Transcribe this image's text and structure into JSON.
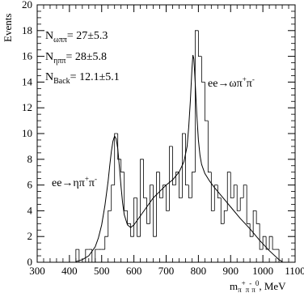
{
  "chart_data": {
    "type": "histogram_with_fit",
    "ylabel": "Events",
    "xlabel_parts": {
      "main": "m",
      "sub1": "π",
      "sup1": "+",
      "sub2": "π",
      "sup2": "-",
      "sub3": "π",
      "sup3": "0",
      "unit": ", MeV"
    },
    "xlim": [
      300,
      1100
    ],
    "ylim": [
      0,
      20
    ],
    "xticks": [
      300,
      400,
      500,
      600,
      700,
      800,
      900,
      1000,
      1100
    ],
    "yticks": [
      0,
      2,
      4,
      6,
      8,
      10,
      12,
      14,
      16,
      18,
      20
    ],
    "grid": false,
    "annotations": {
      "n_omega": {
        "base": "N",
        "sub": "ωππ",
        "value": "= 27±5.3"
      },
      "n_eta": {
        "base": "N",
        "sub": "ηππ",
        "value": "= 28±5.8"
      },
      "n_back": {
        "base": "N",
        "sub": "Back",
        "value": "= 12.1±5.1"
      },
      "omega_label": {
        "prefix": "ee→ωπ",
        "sup1": "+",
        "mid": "π",
        "sup2": "-"
      },
      "eta_label": {
        "prefix": "ee→ηπ",
        "sup1": "+",
        "mid": "π",
        "sup2": "-"
      }
    },
    "histogram": {
      "bin_edges_start": 420,
      "bin_width": 10,
      "counts": [
        1,
        0,
        0,
        1,
        1,
        0,
        1,
        1,
        1,
        2,
        4,
        6,
        10,
        8,
        7,
        4,
        3,
        2,
        5,
        2,
        8,
        5,
        3,
        6,
        2,
        7,
        5,
        6,
        4,
        9,
        6,
        7,
        5,
        10,
        6,
        5,
        7,
        18,
        16,
        14,
        11,
        7,
        4,
        6,
        5,
        3,
        4,
        7,
        5,
        6,
        4,
        5,
        6,
        3,
        2,
        4,
        3,
        1,
        2,
        1,
        2,
        1,
        1
      ]
    },
    "fit_curve": {
      "x": [
        420,
        440,
        460,
        480,
        490,
        500,
        510,
        520,
        525,
        530,
        535,
        540,
        545,
        550,
        555,
        560,
        565,
        570,
        580,
        590,
        600,
        620,
        640,
        660,
        680,
        700,
        720,
        740,
        755,
        765,
        770,
        775,
        780,
        783,
        786,
        790,
        795,
        800,
        805,
        810,
        820,
        835,
        850,
        870,
        900,
        930,
        960,
        990,
        1020,
        1050,
        1060
      ],
      "y": [
        0.05,
        0.2,
        0.5,
        1.2,
        1.9,
        2.9,
        4.4,
        6.3,
        7.5,
        8.6,
        9.4,
        9.8,
        9.6,
        8.8,
        7.4,
        5.9,
        4.6,
        3.7,
        2.9,
        2.7,
        2.9,
        3.6,
        4.3,
        5.0,
        5.5,
        6.0,
        6.4,
        7.0,
        7.8,
        9.0,
        10.5,
        12.5,
        15.0,
        16.1,
        15.8,
        14.0,
        11.5,
        9.5,
        8.3,
        7.6,
        6.9,
        6.3,
        5.8,
        5.2,
        4.3,
        3.4,
        2.6,
        1.7,
        0.9,
        0.2,
        0.05
      ]
    }
  }
}
